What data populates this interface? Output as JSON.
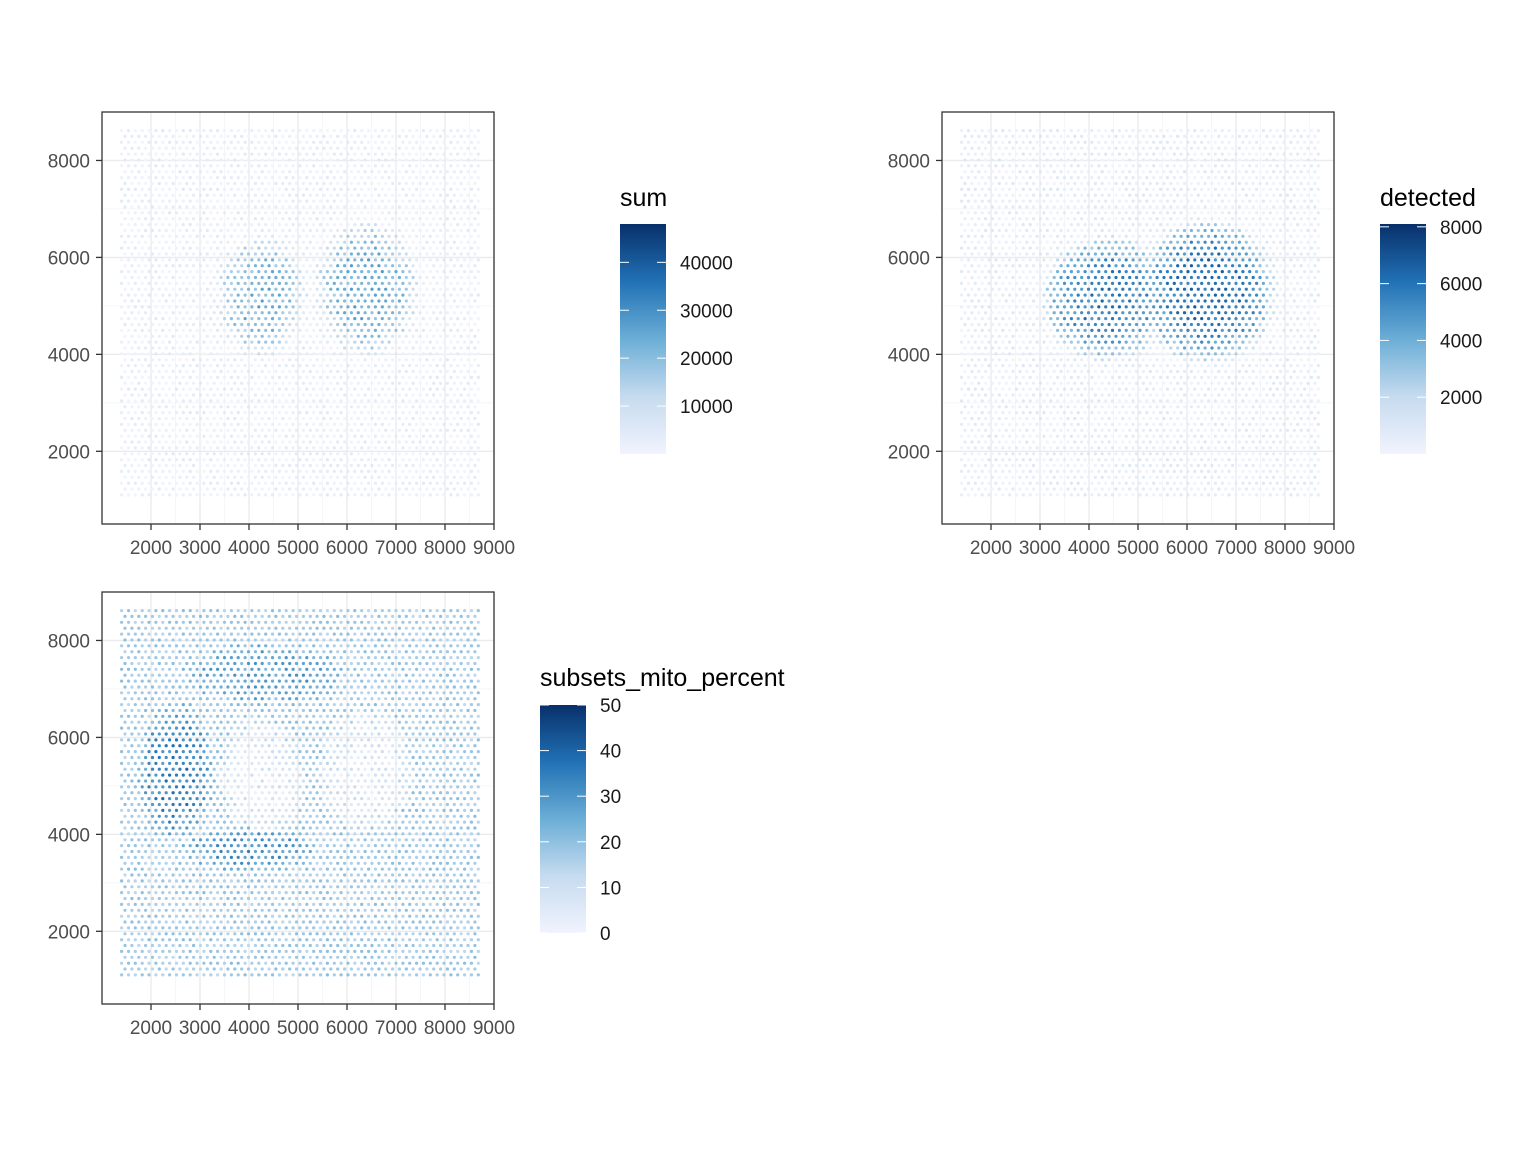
{
  "chart_data": [
    {
      "type": "scatter",
      "title": "",
      "xlabel": "",
      "ylabel": "",
      "xlim": [
        1000,
        9000
      ],
      "ylim": [
        500,
        9000
      ],
      "x_ticks": [
        2000,
        3000,
        4000,
        5000,
        6000,
        7000,
        8000,
        9000
      ],
      "x_tick_labels": [
        "2000",
        "3000",
        "4000",
        "5000",
        "6000",
        "7000",
        "8000",
        "9000"
      ],
      "y_ticks": [
        2000,
        4000,
        6000,
        8000
      ],
      "y_tick_labels": [
        "2000",
        "4000",
        "6000",
        "8000"
      ],
      "grid": true,
      "color_variable": "sum",
      "colorbar": {
        "title": "sum",
        "range": [
          0,
          48000
        ],
        "ticks": [
          10000,
          20000,
          30000,
          40000
        ],
        "tick_labels": [
          "10000",
          "20000",
          "30000",
          "40000"
        ],
        "colors": [
          "#f1f3fd",
          "#c6dbef",
          "#6baed6",
          "#2171b5",
          "#08306b"
        ],
        "placement": "right"
      },
      "spot_grid": {
        "x_range": [
          1400,
          8700
        ],
        "y_range": [
          1100,
          8700
        ],
        "spacing": 140
      },
      "background_level": 1500,
      "regions": [
        {
          "label": "left tissue lobe",
          "center": [
            4250,
            5200
          ],
          "radius_x": 950,
          "radius_y": 1300,
          "level": 22000
        },
        {
          "label": "right tissue lobe",
          "center": [
            6400,
            5350
          ],
          "radius_x": 1100,
          "radius_y": 1450,
          "level": 23000
        }
      ]
    },
    {
      "type": "scatter",
      "title": "",
      "xlabel": "",
      "ylabel": "",
      "xlim": [
        1000,
        9000
      ],
      "ylim": [
        500,
        9000
      ],
      "x_ticks": [
        2000,
        3000,
        4000,
        5000,
        6000,
        7000,
        8000,
        9000
      ],
      "x_tick_labels": [
        "2000",
        "3000",
        "4000",
        "5000",
        "6000",
        "7000",
        "8000",
        "9000"
      ],
      "y_ticks": [
        2000,
        4000,
        6000,
        8000
      ],
      "y_tick_labels": [
        "2000",
        "4000",
        "6000",
        "8000"
      ],
      "grid": true,
      "color_variable": "detected",
      "colorbar": {
        "title": "detected",
        "range": [
          0,
          8100
        ],
        "ticks": [
          2000,
          4000,
          6000,
          8000
        ],
        "tick_labels": [
          "2000",
          "4000",
          "6000",
          "8000"
        ],
        "colors": [
          "#f1f3fd",
          "#c6dbef",
          "#6baed6",
          "#2171b5",
          "#08306b"
        ],
        "placement": "right"
      },
      "spot_grid": {
        "x_range": [
          1400,
          8700
        ],
        "y_range": [
          1100,
          8700
        ],
        "spacing": 140
      },
      "background_level": 400,
      "regions": [
        {
          "label": "left tissue lobe",
          "center": [
            4350,
            5150
          ],
          "radius_x": 1350,
          "radius_y": 1350,
          "level": 5600
        },
        {
          "label": "right tissue lobe",
          "center": [
            6400,
            5300
          ],
          "radius_x": 1500,
          "radius_y": 1550,
          "level": 6000
        }
      ]
    },
    {
      "type": "scatter",
      "title": "",
      "xlabel": "",
      "ylabel": "",
      "xlim": [
        1000,
        9000
      ],
      "ylim": [
        500,
        9000
      ],
      "x_ticks": [
        2000,
        3000,
        4000,
        5000,
        6000,
        7000,
        8000,
        9000
      ],
      "x_tick_labels": [
        "2000",
        "3000",
        "4000",
        "5000",
        "6000",
        "7000",
        "8000",
        "9000"
      ],
      "y_ticks": [
        2000,
        4000,
        6000,
        8000
      ],
      "y_tick_labels": [
        "2000",
        "4000",
        "6000",
        "8000"
      ],
      "grid": true,
      "color_variable": "subsets_mito_percent",
      "colorbar": {
        "title": "subsets_mito_percent",
        "range": [
          0,
          50
        ],
        "ticks": [
          0,
          10,
          20,
          30,
          40,
          50
        ],
        "tick_labels": [
          "0",
          "10",
          "20",
          "30",
          "40",
          "50"
        ],
        "colors": [
          "#f1f3fd",
          "#c6dbef",
          "#6baed6",
          "#2171b5",
          "#08306b"
        ],
        "placement": "right"
      },
      "spot_grid": {
        "x_range": [
          1400,
          8700
        ],
        "y_range": [
          1100,
          8700
        ],
        "spacing": 140
      },
      "background_level": 17,
      "regions": [
        {
          "label": "left tissue lobe",
          "center": [
            4250,
            5200
          ],
          "radius_x": 900,
          "radius_y": 1250,
          "level": 6
        },
        {
          "label": "right tissue lobe",
          "center": [
            6400,
            5350
          ],
          "radius_x": 1000,
          "radius_y": 1350,
          "level": 6
        },
        {
          "label": "left high-mito band",
          "center": [
            2500,
            5300
          ],
          "radius_x": 800,
          "radius_y": 1500,
          "level": 34
        },
        {
          "label": "lower high-mito band",
          "center": [
            4000,
            3700
          ],
          "radius_x": 1400,
          "radius_y": 500,
          "level": 30
        },
        {
          "label": "upper high-mito band",
          "center": [
            4300,
            7300
          ],
          "radius_x": 1700,
          "radius_y": 700,
          "level": 27
        }
      ]
    }
  ]
}
